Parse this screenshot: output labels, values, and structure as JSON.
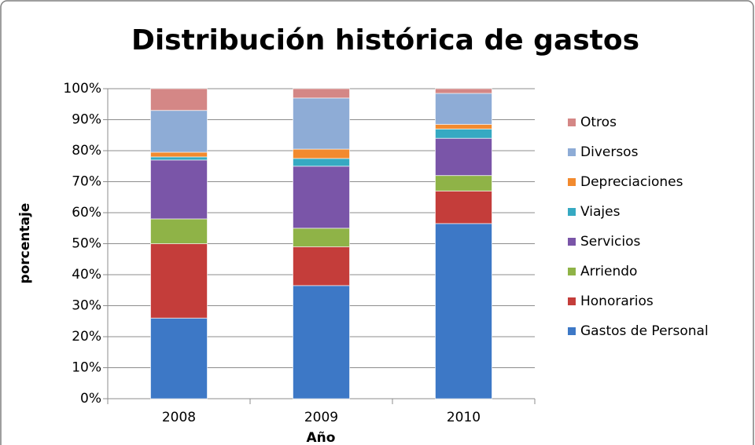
{
  "chart_data": {
    "type": "stacked_bar",
    "title": "Distribución histórica de gastos",
    "x_label": "Año",
    "y_label": "porcentaje",
    "categories": [
      "2008",
      "2009",
      "2010"
    ],
    "series": [
      {
        "name": "Gastos de Personal",
        "color": "#3d78c6",
        "values": [
          26,
          36.5,
          56.5
        ]
      },
      {
        "name": "Honorarios",
        "color": "#c43d3a",
        "values": [
          24,
          12.5,
          10.5
        ]
      },
      {
        "name": "Arriendo",
        "color": "#8fb347",
        "values": [
          8,
          6,
          5
        ]
      },
      {
        "name": "Servicios",
        "color": "#7a55a8",
        "values": [
          19,
          20,
          12
        ]
      },
      {
        "name": "Viajes",
        "color": "#36a9c2",
        "values": [
          1,
          2.5,
          3
        ]
      },
      {
        "name": "Depreciaciones",
        "color": "#f28a2e",
        "values": [
          1.5,
          3,
          1.5
        ]
      },
      {
        "name": "Diversos",
        "color": "#8eacd6",
        "values": [
          13.5,
          16.5,
          10
        ]
      },
      {
        "name": "Otros",
        "color": "#d48786",
        "values": [
          7,
          3,
          1.5
        ]
      }
    ],
    "ylim": [
      0,
      100
    ],
    "yticks": [
      {
        "value": 0,
        "label": "0%"
      },
      {
        "value": 10,
        "label": "10%"
      },
      {
        "value": 20,
        "label": "20%"
      },
      {
        "value": 30,
        "label": "30%"
      },
      {
        "value": 40,
        "label": "40%"
      },
      {
        "value": 50,
        "label": "50%"
      },
      {
        "value": 60,
        "label": "60%"
      },
      {
        "value": 70,
        "label": "70%"
      },
      {
        "value": 80,
        "label": "80%"
      },
      {
        "value": 90,
        "label": "90%"
      },
      {
        "value": 100,
        "label": "100%"
      }
    ],
    "grid": true,
    "legend": "right"
  }
}
